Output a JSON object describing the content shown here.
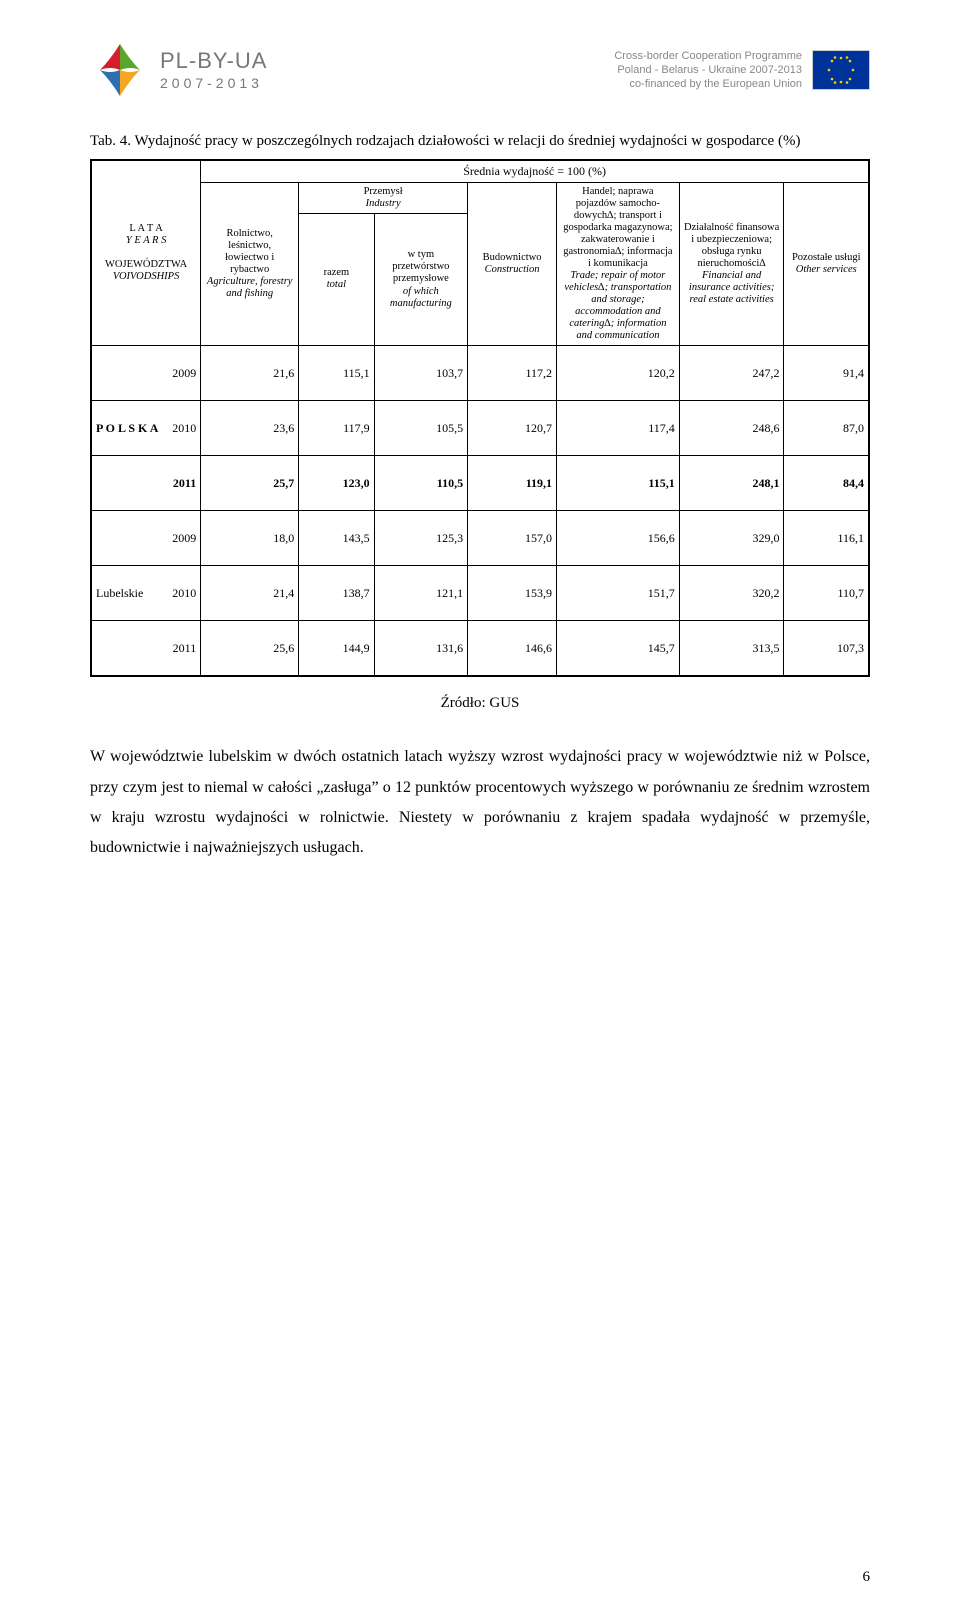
{
  "header": {
    "brand_code": "PL-BY-UA",
    "brand_years": "2007-2013",
    "programme_line1": "Cross-border Cooperation Programme",
    "programme_line2": "Poland - Belarus - Ukraine 2007-2013",
    "programme_line3": "co-financed by the European Union"
  },
  "caption": "Tab. 4. Wydajność pracy w poszczególnych rodzajach działowości w relacji do średniej wydajności w gospodarce (%)",
  "table": {
    "super_header": "Średnia wydajność = 100 (%)",
    "row_group_heading_pl": "L A T A",
    "row_group_heading_en": "Y E A R S",
    "row_group_sub_pl": "WOJEWÓDZTWA",
    "row_group_sub_en": "VOIVODSHIPS",
    "col_agri_pl": "Rolnictwo, leśnictwo, łowiectwo i rybactwo",
    "col_agri_en": "Agriculture, forestry and fishing",
    "col_industry_head_pl": "Przemysł",
    "col_industry_head_en": "Industry",
    "col_total_pl": "razem",
    "col_total_en": "total",
    "col_manu_pl": "w tym przetwórstwo przemysłowe",
    "col_manu_en": "of which manufacturing",
    "col_constr_pl": "Budownictwo",
    "col_constr_en": "Construction",
    "col_trade_pl": "Handel; naprawa pojazdów samocho­dowych∆; transport i gospodarka magazynowa; zakwaterowanie i gastronomia∆; informacja i komunikacja",
    "col_trade_en": "Trade; repair of motor vehicles∆; transportation and storage; accommodation and catering∆; information and communication",
    "col_fin_pl": "Działalność finansowa i ubezpieczeniowa; obsługa rynku nieruchomości∆",
    "col_fin_en": "Financial and insurance activities; real estate activities",
    "col_other_pl": "Pozostałe usługi",
    "col_other_en": "Other services",
    "groups": [
      {
        "label": "P O L S K A",
        "rows": [
          {
            "year": "2009",
            "v": [
              "21,6",
              "115,1",
              "103,7",
              "117,2",
              "120,2",
              "247,2",
              "91,4"
            ]
          },
          {
            "year": "2010",
            "v": [
              "23,6",
              "117,9",
              "105,5",
              "120,7",
              "117,4",
              "248,6",
              "87,0"
            ]
          },
          {
            "year": "2011",
            "bold": true,
            "v": [
              "25,7",
              "123,0",
              "110,5",
              "119,1",
              "115,1",
              "248,1",
              "84,4"
            ]
          }
        ]
      },
      {
        "label": "Lubelskie",
        "rows": [
          {
            "year": "2009",
            "v": [
              "18,0",
              "143,5",
              "125,3",
              "157,0",
              "156,6",
              "329,0",
              "116,1"
            ]
          },
          {
            "year": "2010",
            "v": [
              "21,4",
              "138,7",
              "121,1",
              "153,9",
              "151,7",
              "320,2",
              "110,7"
            ]
          },
          {
            "year": "2011",
            "v": [
              "25,6",
              "144,9",
              "131,6",
              "146,6",
              "145,7",
              "313,5",
              "107,3"
            ]
          }
        ]
      }
    ]
  },
  "source": "Źródło: GUS",
  "body_paragraph": "W województwie lubelskim w dwóch ostatnich latach wyższy wzrost wydajności pracy w województwie niż w Polsce, przy czym jest to niemal w całości „zasługa” o 12 punktów procentowych wyższego w porównaniu ze średnim wzrostem w kraju wzrostu wydajności w rolnictwie. Niestety w porównaniu z krajem spadała wydajność w przemyśle, budownictwie i najważniejszych usługach.",
  "page_number": "6",
  "colors": {
    "logo_red": "#d81e2c",
    "logo_yellow": "#f5a623",
    "logo_green": "#5aa62a",
    "logo_blue": "#2e6fb0",
    "eu_blue": "#003399",
    "eu_gold": "#ffcc00"
  }
}
